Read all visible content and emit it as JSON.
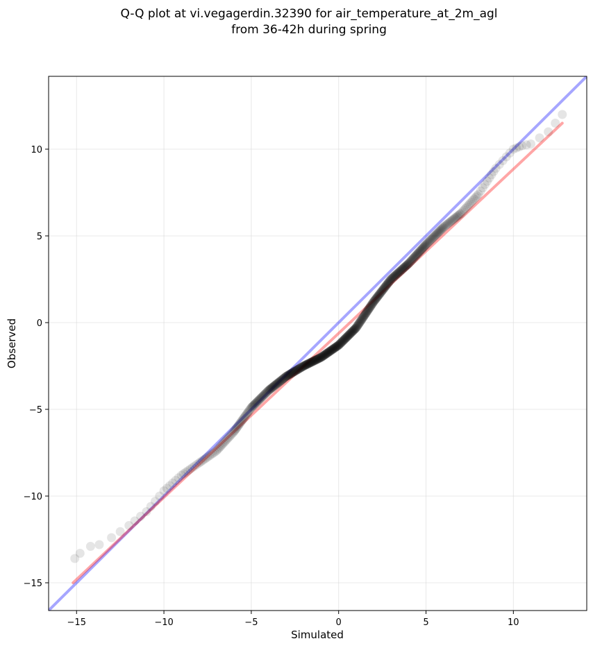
{
  "chart_data": {
    "type": "scatter",
    "title": "Q-Q plot at vi.vegagerdin.32390 for air_temperature_at_2m_agl",
    "subtitle": "from 36-42h during spring",
    "xlabel": "Simulated",
    "ylabel": "Observed",
    "xlim": [
      -16.6,
      14.2
    ],
    "ylim": [
      -16.6,
      14.2
    ],
    "x_ticks": [
      -15,
      -10,
      -5,
      0,
      5,
      10
    ],
    "y_ticks": [
      -15,
      -10,
      -5,
      0,
      5,
      10
    ],
    "x_tick_labels": [
      "−15",
      "−10",
      "−5",
      "0",
      "5",
      "10"
    ],
    "y_tick_labels": [
      "−15",
      "−10",
      "−5",
      "0",
      "5",
      "10"
    ],
    "grid": true,
    "colors": {
      "points": "#000000",
      "identity_line": "#0000ff",
      "fit_line": "#ff0000",
      "grid": "#d9d9d9"
    },
    "reference_lines": [
      {
        "kind": "identity",
        "x": [
          -16.6,
          14.2
        ],
        "y": [
          -16.6,
          14.2
        ]
      },
      {
        "kind": "fit",
        "x": [
          -15.2,
          12.8
        ],
        "y": [
          -15.0,
          11.5
        ]
      }
    ],
    "quantile_curve": {
      "x": [
        -15.1,
        -14.8,
        -14.2,
        -13.7,
        -13.0,
        -12.0,
        -11.0,
        -10.0,
        -9.0,
        -8.0,
        -7.0,
        -6.0,
        -5.0,
        -4.0,
        -3.0,
        -2.0,
        -1.0,
        0.0,
        1.0,
        2.0,
        3.0,
        4.0,
        5.0,
        6.0,
        7.0,
        8.0,
        9.0,
        10.0,
        10.5,
        11.0,
        12.0,
        12.8
      ],
      "y": [
        -13.6,
        -13.3,
        -12.9,
        -12.8,
        -12.4,
        -11.7,
        -10.9,
        -9.7,
        -8.8,
        -8.1,
        -7.4,
        -6.3,
        -4.9,
        -3.9,
        -3.1,
        -2.5,
        -2.0,
        -1.3,
        -0.3,
        1.2,
        2.5,
        3.4,
        4.5,
        5.5,
        6.3,
        7.4,
        8.9,
        10.0,
        10.2,
        10.3,
        11.0,
        12.0
      ]
    },
    "point_density": {
      "x": [
        -15.1,
        -14.8,
        -14.2,
        -13.7,
        -13.0,
        -12.0,
        -11.0,
        -10.0,
        -9.0,
        -8.0,
        -7.0,
        -6.0,
        -5.0,
        -4.0,
        -3.0,
        -2.0,
        -1.0,
        0.0,
        1.0,
        2.0,
        3.0,
        4.0,
        5.0,
        6.0,
        7.0,
        8.0,
        9.0,
        10.0,
        10.5,
        11.0,
        12.0,
        12.8
      ],
      "n": [
        1,
        1,
        1,
        1,
        2,
        3,
        4,
        6,
        8,
        10,
        14,
        22,
        30,
        38,
        44,
        48,
        50,
        50,
        48,
        46,
        40,
        34,
        26,
        18,
        12,
        8,
        5,
        3,
        2,
        2,
        2,
        1
      ]
    }
  }
}
